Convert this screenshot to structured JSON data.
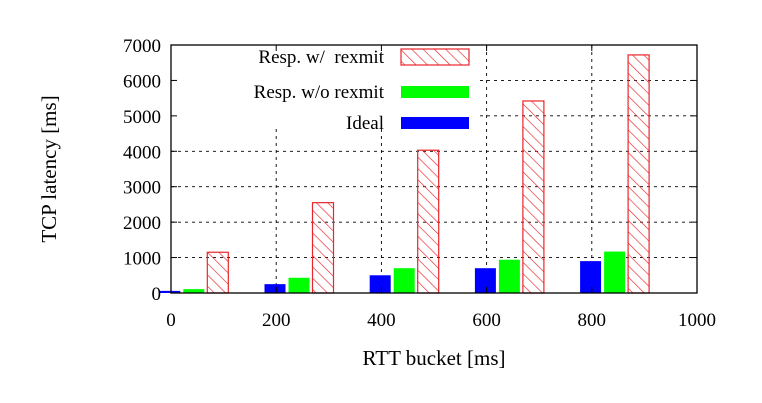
{
  "chart_data": {
    "type": "bar",
    "title": "",
    "xlabel": "RTT bucket [ms]",
    "ylabel": "TCP latency [ms]",
    "xlim": [
      0,
      1000
    ],
    "ylim": [
      0,
      7000
    ],
    "xticks": [
      0,
      200,
      400,
      600,
      800,
      1000
    ],
    "yticks": [
      0,
      1000,
      2000,
      3000,
      4000,
      5000,
      6000,
      7000
    ],
    "grid": true,
    "legend_position": "top-right",
    "x": [
      50,
      250,
      450,
      650,
      850
    ],
    "series": [
      {
        "name": "Resp. w/  rexmit",
        "color": "#e8262b",
        "style": "hatched",
        "values": [
          1150,
          2550,
          4030,
          5420,
          6720
        ]
      },
      {
        "name": "Resp. w/o rexmit",
        "color": "#00ff00",
        "style": "solid",
        "values": [
          110,
          430,
          700,
          940,
          1170
        ]
      },
      {
        "name": "Ideal",
        "color": "#0000ff",
        "style": "solid",
        "values": [
          60,
          250,
          500,
          700,
          900
        ]
      }
    ]
  }
}
